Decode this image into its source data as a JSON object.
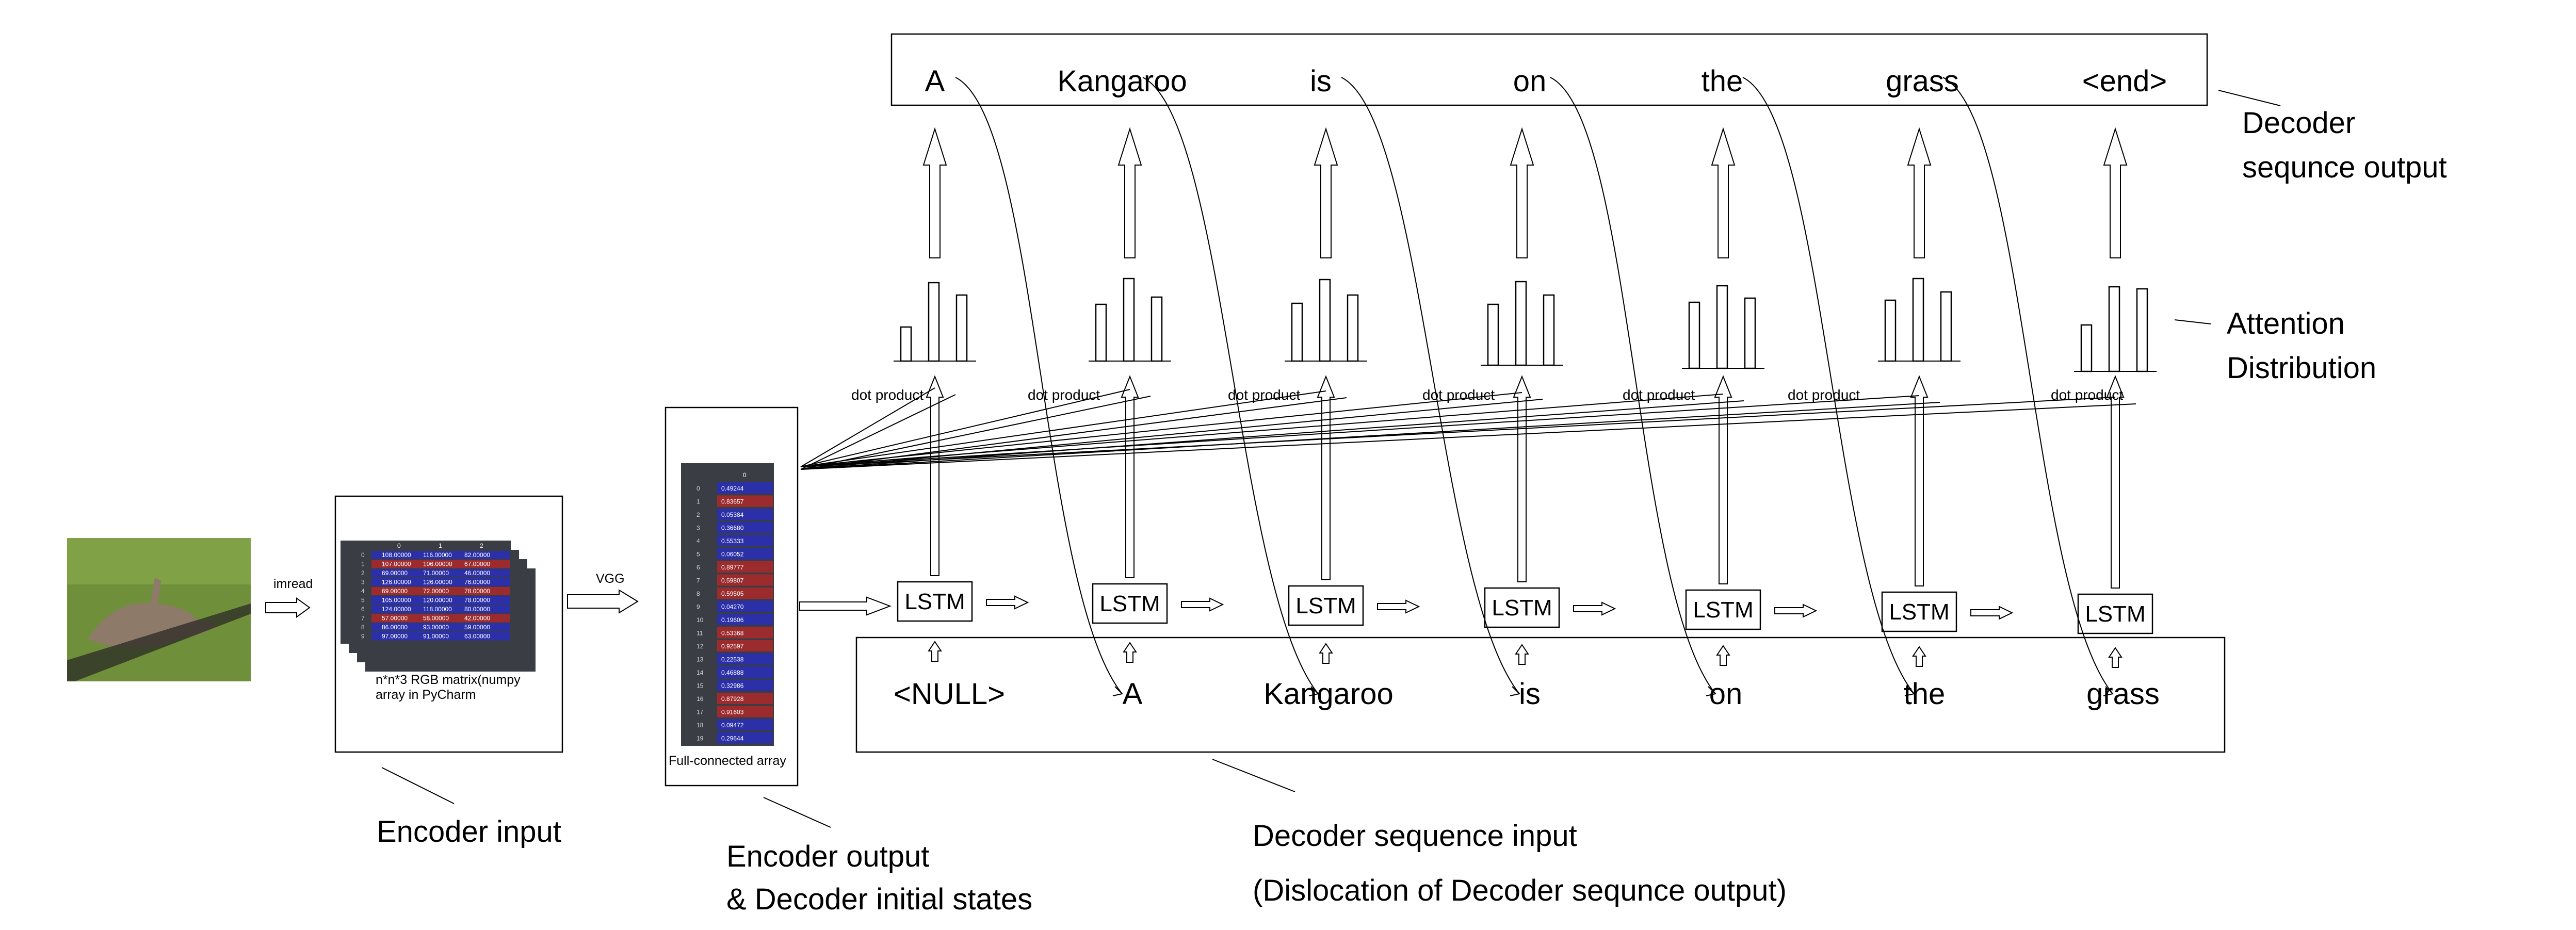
{
  "encoder": {
    "imread_label": "imread",
    "matrix_caption_line1": "n*n*3 RGB matrix(numpy",
    "matrix_caption_line2": "array in PyCharm",
    "vgg_label": "VGG",
    "fc_caption": "Full-connected array",
    "fc_header": "0",
    "fc_values": [
      "0.49244",
      "0.83657",
      "0.05384",
      "0.36680",
      "0.55333",
      "0.06052",
      "0.89777",
      "0.59807",
      "0.59505",
      "0.04270",
      "0.19606",
      "0.53368",
      "0.92597",
      "0.22538",
      "0.46888",
      "0.32986",
      "0.87928",
      "0.91603",
      "0.09472",
      "0.29644"
    ],
    "matrix_headers": [
      "0",
      "1",
      "2"
    ],
    "matrix_rows": [
      [
        "108.00000",
        "116.00000",
        "82.00000"
      ],
      [
        "107.00000",
        "106.00000",
        "67.00000"
      ],
      [
        "69.00000",
        "71.00000",
        "46.00000"
      ],
      [
        "126.00000",
        "126.00000",
        "76.00000"
      ],
      [
        "69.00000",
        "72.00000",
        "78.00000"
      ],
      [
        "105.00000",
        "120.00000",
        "78.00000"
      ],
      [
        "124.00000",
        "118.00000",
        "80.00000"
      ],
      [
        "57.00000",
        "58.00000",
        "42.00000"
      ],
      [
        "86.00000",
        "93.00000",
        "59.00000"
      ],
      [
        "97.00000",
        "91.00000",
        "63.00000"
      ]
    ]
  },
  "decoder": {
    "output_words": [
      "A",
      "Kangaroo",
      "is",
      "on",
      "the",
      "grass",
      "<end>"
    ],
    "input_words": [
      "<NULL>",
      "A",
      "Kangaroo",
      "is",
      "on",
      "the",
      "grass"
    ],
    "lstm_label": "LSTM",
    "dot_product_label": "dot product"
  },
  "captions": {
    "encoder_input": "Encoder input",
    "encoder_output_line1": "Encoder output",
    "encoder_output_line2": "& Decoder  initial states",
    "decoder_input_line1": "Decoder sequence input",
    "decoder_input_line2": "(Dislocation of Decoder sequnce output)",
    "decoder_output_line1": "Decoder",
    "decoder_output_line2": "sequnce output",
    "attention_line1": "Attention",
    "attention_line2": "Distribution"
  },
  "colors": {
    "matrix_blue": "#2b2fa8",
    "matrix_red": "#9c2b2e",
    "matrix_dark": "#3a3d44",
    "grass": "#6f8f3a"
  }
}
